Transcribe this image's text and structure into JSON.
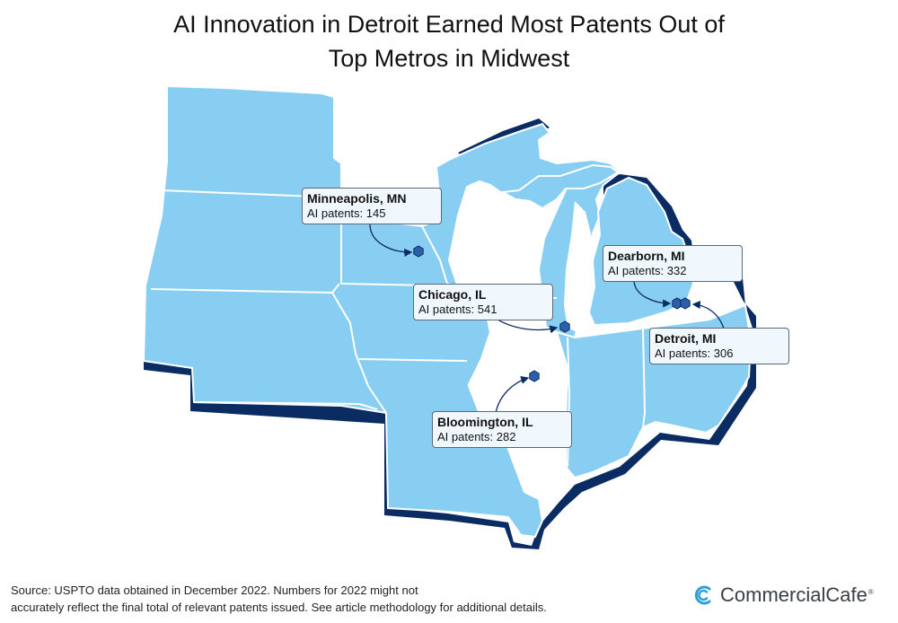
{
  "title_line1": "AI Innovation in Detroit Earned Most Patents Out of",
  "title_line2": "Top Metros in Midwest",
  "colors": {
    "land": "#87cef2",
    "border": "#ffffff",
    "shadow": "#0b2c63",
    "marker": "#2d5fa8",
    "callout_bg": "#f1f8fd"
  },
  "locations": [
    {
      "city": "Minneapolis, MN",
      "count_label": "AI patents",
      "patents": 145
    },
    {
      "city": "Chicago, IL",
      "count_label": "AI patents",
      "patents": 541
    },
    {
      "city": "Dearborn, MI",
      "count_label": "AI patents",
      "patents": 332
    },
    {
      "city": "Detroit, MI",
      "count_label": "AI patents",
      "patents": 306
    },
    {
      "city": "Bloomington, IL",
      "count_label": "AI patents",
      "patents": 282
    }
  ],
  "source_line1": "Source: USPTO data obtained in December 2022. Numbers for 2022 might not",
  "source_line2": "accurately reflect the final total of relevant patents issued. See article methodology for additional details.",
  "brand": {
    "name": "CommercialCafe",
    "mark": "®",
    "logo_icon": "cc-logo-icon"
  }
}
